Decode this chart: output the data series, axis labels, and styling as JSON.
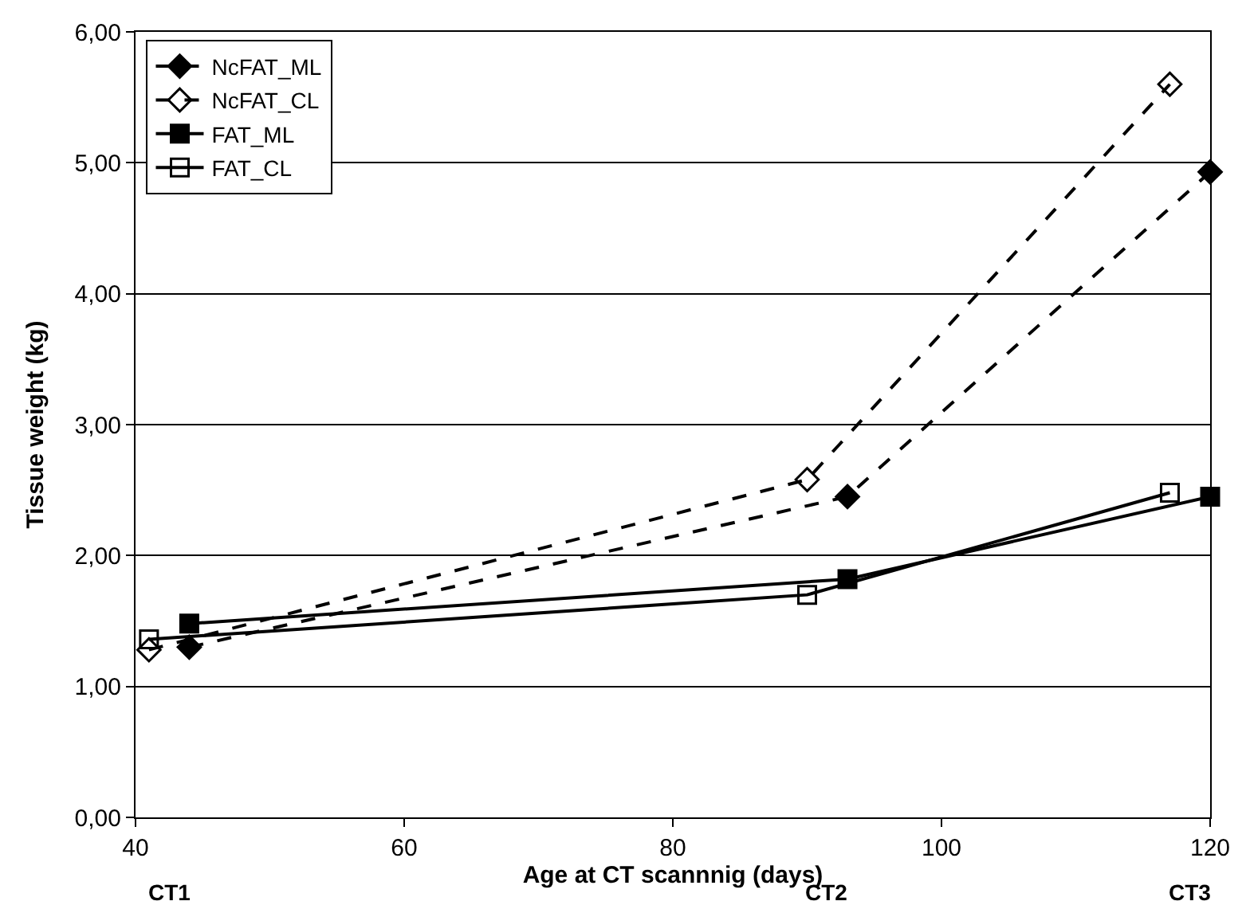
{
  "chart_data": {
    "type": "line",
    "xlabel": "Age at CT scannnig (days)",
    "ylabel": "Tissue weight (kg)",
    "xlim": [
      40,
      120
    ],
    "xticks": [
      40,
      60,
      80,
      100,
      120
    ],
    "ylim": [
      0,
      6
    ],
    "yticks": [
      {
        "value": 0,
        "label": "0,00"
      },
      {
        "value": 1,
        "label": "1,00"
      },
      {
        "value": 2,
        "label": "2,00"
      },
      {
        "value": 3,
        "label": "3,00"
      },
      {
        "value": 4,
        "label": "4,00"
      },
      {
        "value": 5,
        "label": "5,00"
      },
      {
        "value": 6,
        "label": "6,00"
      }
    ],
    "grid": "y",
    "legend": "top left",
    "series": [
      {
        "name": "NcFAT_ML",
        "color": "#000000",
        "x": [
          44,
          93,
          120
        ],
        "values": [
          1.3,
          2.45,
          4.93
        ],
        "marker": "diamond",
        "line_style": "dashed"
      },
      {
        "name": "NcFAT_CL",
        "color": "#000000",
        "x": [
          41,
          90,
          117
        ],
        "values": [
          1.28,
          2.58,
          5.6
        ],
        "marker": "diamond",
        "line_style": "dashed"
      },
      {
        "name": "FAT_ML",
        "color": "#000000",
        "x": [
          44,
          93,
          120
        ],
        "values": [
          1.48,
          1.82,
          2.45
        ],
        "marker": "square",
        "line_style": "solid"
      },
      {
        "name": "FAT_CL",
        "color": "#000000",
        "x": [
          41,
          90,
          117
        ],
        "values": [
          1.36,
          1.7,
          2.48
        ],
        "marker": "square",
        "line_style": "solid"
      }
    ],
    "annotations": [
      "CT1",
      "CT2",
      "CT3"
    ]
  }
}
